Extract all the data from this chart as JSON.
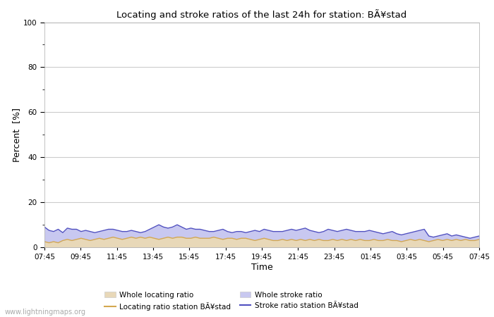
{
  "title": "Locating and stroke ratios of the last 24h for station: BÃ¥stad",
  "xlabel": "Time",
  "ylabel": "Percent  [%]",
  "xlim": [
    0,
    96
  ],
  "ylim": [
    0,
    100
  ],
  "yticks": [
    0,
    20,
    40,
    60,
    80,
    100
  ],
  "ytick_minor": [
    10,
    30,
    50,
    70,
    90
  ],
  "x_labels": [
    "07:45",
    "09:45",
    "11:45",
    "13:45",
    "15:45",
    "17:45",
    "19:45",
    "21:45",
    "23:45",
    "01:45",
    "03:45",
    "05:45",
    "07:45"
  ],
  "watermark": "www.lightningmaps.org",
  "background_color": "#ffffff",
  "plot_background": "#ffffff",
  "grid_color": "#cccccc",
  "fill_stroke_color": "#c8c8f0",
  "fill_locating_color": "#e8d8b8",
  "line_locating_color": "#d4a850",
  "line_stroke_color": "#5050c0",
  "legend_labels": [
    "Whole locating ratio",
    "Locating ratio station BÃ¥stad",
    "Whole stroke ratio",
    "Stroke ratio station BÃ¥stad"
  ],
  "whole_stroke_ratio": [
    9,
    7.5,
    7,
    8,
    6.5,
    8.5,
    8,
    8,
    7,
    7.5,
    7,
    6.5,
    7,
    7.5,
    8,
    8,
    7.5,
    7,
    7,
    7.5,
    7,
    6.5,
    7,
    8,
    9,
    10,
    9,
    8.5,
    9,
    10,
    9,
    8,
    8.5,
    8,
    8,
    7.5,
    7,
    7,
    7.5,
    8,
    7,
    6.5,
    7,
    7,
    6.5,
    7,
    7.5,
    7,
    8,
    7.5,
    7,
    7,
    7,
    7.5,
    8,
    7.5,
    8,
    8.5,
    7.5,
    7,
    6.5,
    7,
    8,
    7.5,
    7,
    7.5,
    8,
    7.5,
    7,
    7,
    7,
    7.5,
    7,
    6.5,
    6,
    6.5,
    7,
    6,
    5.5,
    6,
    6.5,
    7,
    7.5,
    8,
    5,
    4.5,
    5,
    5.5,
    6,
    5,
    5.5,
    5,
    4.5,
    4,
    4.5,
    5
  ],
  "whole_locating_ratio": [
    2.5,
    2,
    2.5,
    2,
    3,
    3.5,
    3,
    3.5,
    4,
    3.5,
    3,
    3.5,
    4,
    3.5,
    4,
    4.5,
    4,
    3.5,
    4,
    4.5,
    4,
    4.5,
    4,
    4.5,
    4,
    3.5,
    4,
    4.5,
    4,
    4.5,
    4.5,
    4,
    4,
    4.5,
    4,
    4,
    4,
    4.5,
    4,
    3.5,
    4,
    4,
    3.5,
    4,
    4,
    3.5,
    3,
    3.5,
    4,
    3.5,
    3,
    3,
    3.5,
    3,
    3.5,
    3,
    3.5,
    3,
    3.5,
    3,
    3.5,
    3,
    3,
    3.5,
    3,
    3.5,
    3,
    3.5,
    3,
    3.5,
    3,
    3,
    3.5,
    3,
    3,
    3.5,
    3,
    3,
    2.5,
    3,
    3.5,
    3,
    3.5,
    3,
    2.5,
    3,
    3.5,
    3,
    3.5,
    3,
    3.5,
    3,
    3.5,
    3,
    3,
    3.5
  ],
  "station_locating_ratio": [
    2.5,
    2,
    2.5,
    2,
    3,
    3.5,
    3,
    3.5,
    4,
    3.5,
    3,
    3.5,
    4,
    3.5,
    4,
    4.5,
    4,
    3.5,
    4,
    4.5,
    4,
    4.5,
    4,
    4.5,
    4,
    3.5,
    4,
    4.5,
    4,
    4.5,
    4.5,
    4,
    4,
    4.5,
    4,
    4,
    4,
    4.5,
    4,
    3.5,
    4,
    4,
    3.5,
    4,
    4,
    3.5,
    3,
    3.5,
    4,
    3.5,
    3,
    3,
    3.5,
    3,
    3.5,
    3,
    3.5,
    3,
    3.5,
    3,
    3.5,
    3,
    3,
    3.5,
    3,
    3.5,
    3,
    3.5,
    3,
    3.5,
    3,
    3,
    3.5,
    3,
    3,
    3.5,
    3,
    3,
    2.5,
    3,
    3.5,
    3,
    3.5,
    3,
    2.5,
    3,
    3.5,
    3,
    3.5,
    3,
    3.5,
    3,
    3.5,
    3,
    3,
    3.5
  ],
  "station_stroke_ratio": [
    9,
    7.5,
    7,
    8,
    6.5,
    8.5,
    8,
    8,
    7,
    7.5,
    7,
    6.5,
    7,
    7.5,
    8,
    8,
    7.5,
    7,
    7,
    7.5,
    7,
    6.5,
    7,
    8,
    9,
    10,
    9,
    8.5,
    9,
    10,
    9,
    8,
    8.5,
    8,
    8,
    7.5,
    7,
    7,
    7.5,
    8,
    7,
    6.5,
    7,
    7,
    6.5,
    7,
    7.5,
    7,
    8,
    7.5,
    7,
    7,
    7,
    7.5,
    8,
    7.5,
    8,
    8.5,
    7.5,
    7,
    6.5,
    7,
    8,
    7.5,
    7,
    7.5,
    8,
    7.5,
    7,
    7,
    7,
    7.5,
    7,
    6.5,
    6,
    6.5,
    7,
    6,
    5.5,
    6,
    6.5,
    7,
    7.5,
    8,
    5,
    4.5,
    5,
    5.5,
    6,
    5,
    5.5,
    5,
    4.5,
    4,
    4.5,
    5
  ],
  "figsize": [
    7.0,
    4.5
  ],
  "dpi": 100
}
